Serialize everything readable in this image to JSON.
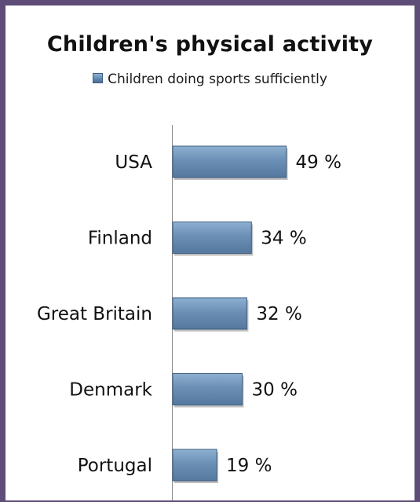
{
  "chart_data": {
    "type": "bar",
    "orientation": "horizontal",
    "title": "Children's physical activity",
    "legend_position": "top",
    "categories": [
      "USA",
      "Finland",
      "Great Britain",
      "Denmark",
      "Portugal"
    ],
    "series": [
      {
        "name": "Children doing sports sufficiently",
        "values": [
          49,
          34,
          32,
          30,
          19
        ],
        "labels": [
          "49 %",
          "34 %",
          "32 %",
          "30 %",
          "19 %"
        ],
        "color": "#6b8fb5"
      }
    ],
    "xlim": [
      0,
      100
    ],
    "grid": false,
    "colors": {
      "frame": "#5e4d78",
      "bar": "#6b8fb5",
      "bar_edge": "#3e5e82"
    }
  }
}
